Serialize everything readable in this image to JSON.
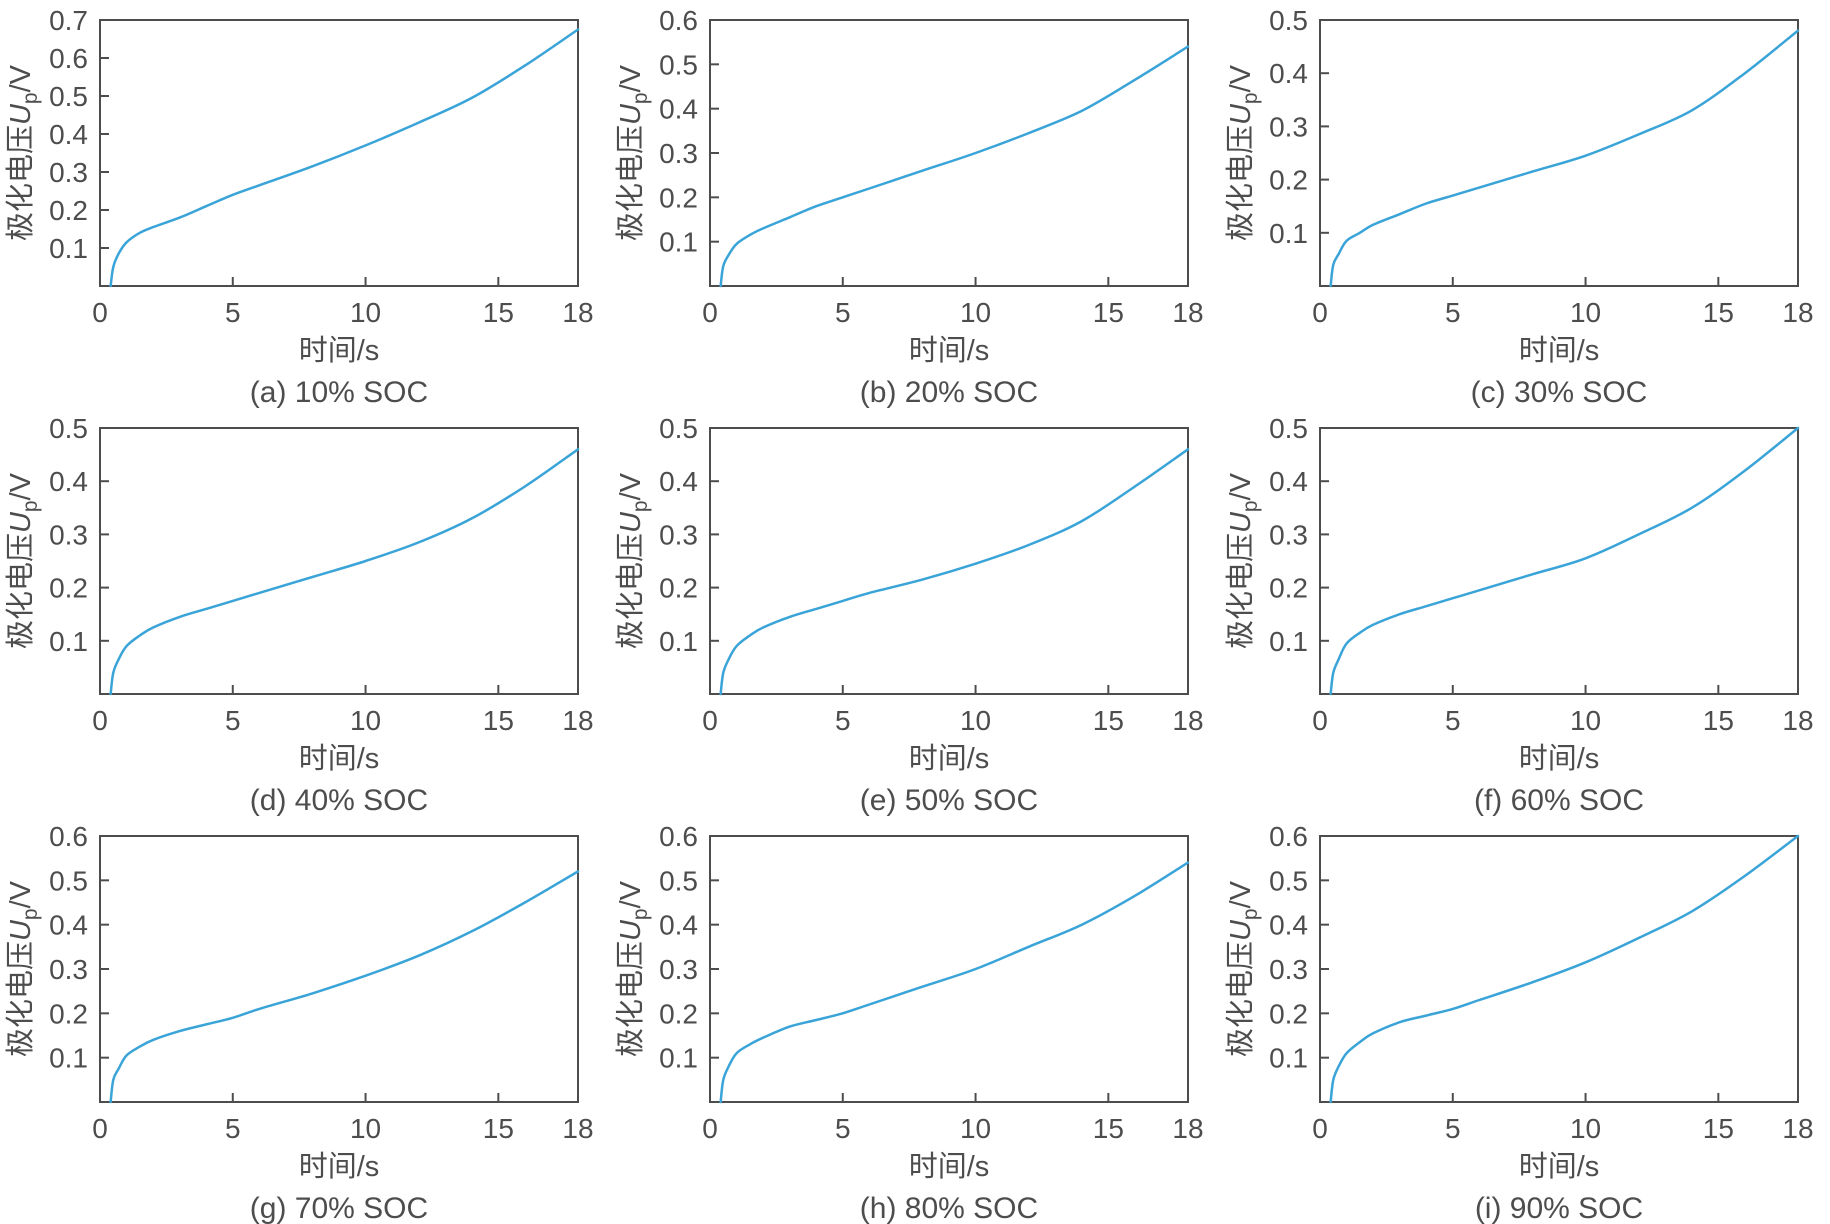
{
  "figure": {
    "x_axis_label": "时间/s",
    "y_axis_label": {
      "prefix": "极化电压",
      "symbol": "U",
      "subscript": "p",
      "suffix": "/V"
    },
    "line_color": "#3aa4d8",
    "axis_color": "#4d4d4d",
    "text_color": "#4d4d4d",
    "background_color": "#ffffff"
  },
  "chart_data": [
    {
      "type": "line",
      "caption": "(a) 10% SOC",
      "title": "",
      "xlabel": "时间/s",
      "ylabel": "极化电压Up/V",
      "xlim": [
        0,
        18
      ],
      "ylim": [
        0,
        0.7
      ],
      "xticks": [
        0,
        5,
        10,
        15,
        18
      ],
      "yticks": [
        0.1,
        0.2,
        0.3,
        0.4,
        0.5,
        0.6,
        0.7
      ],
      "grid": false,
      "legend": null,
      "x": [
        0.4,
        0.5,
        0.7,
        1,
        1.5,
        2,
        3,
        4,
        5,
        6,
        8,
        10,
        12,
        14,
        16,
        18
      ],
      "y": [
        0,
        0.05,
        0.085,
        0.115,
        0.14,
        0.155,
        0.18,
        0.21,
        0.24,
        0.265,
        0.315,
        0.37,
        0.43,
        0.495,
        0.58,
        0.675
      ]
    },
    {
      "type": "line",
      "caption": "(b) 20% SOC",
      "title": "",
      "xlabel": "时间/s",
      "ylabel": "极化电压Up/V",
      "xlim": [
        0,
        18
      ],
      "ylim": [
        0,
        0.6
      ],
      "xticks": [
        0,
        5,
        10,
        15,
        18
      ],
      "yticks": [
        0.1,
        0.2,
        0.3,
        0.4,
        0.5,
        0.6
      ],
      "grid": false,
      "legend": null,
      "x": [
        0.4,
        0.5,
        0.7,
        1,
        1.5,
        2,
        3,
        4,
        5,
        6,
        8,
        10,
        12,
        14,
        16,
        18
      ],
      "y": [
        0,
        0.045,
        0.07,
        0.095,
        0.115,
        0.13,
        0.155,
        0.18,
        0.2,
        0.22,
        0.26,
        0.3,
        0.345,
        0.395,
        0.465,
        0.54
      ]
    },
    {
      "type": "line",
      "caption": "(c) 30% SOC",
      "title": "",
      "xlabel": "时间/s",
      "ylabel": "极化电压Up/V",
      "xlim": [
        0,
        18
      ],
      "ylim": [
        0,
        0.5
      ],
      "xticks": [
        0,
        5,
        10,
        15,
        18
      ],
      "yticks": [
        0.1,
        0.2,
        0.3,
        0.4,
        0.5
      ],
      "grid": false,
      "legend": null,
      "x": [
        0.4,
        0.5,
        0.7,
        1,
        1.5,
        2,
        3,
        4,
        5,
        6,
        8,
        10,
        12,
        14,
        16,
        18
      ],
      "y": [
        0,
        0.04,
        0.06,
        0.085,
        0.1,
        0.115,
        0.135,
        0.155,
        0.17,
        0.185,
        0.215,
        0.245,
        0.285,
        0.33,
        0.4,
        0.48
      ]
    },
    {
      "type": "line",
      "caption": "(d) 40% SOC",
      "title": "",
      "xlabel": "时间/s",
      "ylabel": "极化电压Up/V",
      "xlim": [
        0,
        18
      ],
      "ylim": [
        0,
        0.5
      ],
      "xticks": [
        0,
        5,
        10,
        15,
        18
      ],
      "yticks": [
        0.1,
        0.2,
        0.3,
        0.4,
        0.5
      ],
      "grid": false,
      "legend": null,
      "x": [
        0.4,
        0.5,
        0.7,
        1,
        1.5,
        2,
        3,
        4,
        5,
        6,
        8,
        10,
        12,
        14,
        16,
        18
      ],
      "y": [
        0,
        0.04,
        0.065,
        0.09,
        0.11,
        0.125,
        0.145,
        0.16,
        0.175,
        0.19,
        0.22,
        0.25,
        0.285,
        0.33,
        0.39,
        0.46
      ]
    },
    {
      "type": "line",
      "caption": "(e) 50% SOC",
      "title": "",
      "xlabel": "时间/s",
      "ylabel": "极化电压Up/V",
      "xlim": [
        0,
        18
      ],
      "ylim": [
        0,
        0.5
      ],
      "xticks": [
        0,
        5,
        10,
        15,
        18
      ],
      "yticks": [
        0.1,
        0.2,
        0.3,
        0.4,
        0.5
      ],
      "grid": false,
      "legend": null,
      "x": [
        0.4,
        0.5,
        0.7,
        1,
        1.5,
        2,
        3,
        4,
        5,
        6,
        8,
        10,
        12,
        14,
        16,
        18
      ],
      "y": [
        0,
        0.04,
        0.065,
        0.09,
        0.11,
        0.125,
        0.145,
        0.16,
        0.175,
        0.19,
        0.215,
        0.245,
        0.28,
        0.325,
        0.39,
        0.46
      ]
    },
    {
      "type": "line",
      "caption": "(f) 60% SOC",
      "title": "",
      "xlabel": "时间/s",
      "ylabel": "极化电压Up/V",
      "xlim": [
        0,
        18
      ],
      "ylim": [
        0,
        0.5
      ],
      "xticks": [
        0,
        5,
        10,
        15,
        18
      ],
      "yticks": [
        0.1,
        0.2,
        0.3,
        0.4,
        0.5
      ],
      "grid": false,
      "legend": null,
      "x": [
        0.4,
        0.5,
        0.7,
        1,
        1.5,
        2,
        3,
        4,
        5,
        6,
        8,
        10,
        12,
        14,
        16,
        18
      ],
      "y": [
        0,
        0.04,
        0.065,
        0.095,
        0.115,
        0.13,
        0.15,
        0.165,
        0.18,
        0.195,
        0.225,
        0.255,
        0.3,
        0.35,
        0.42,
        0.5
      ]
    },
    {
      "type": "line",
      "caption": "(g) 70% SOC",
      "title": "",
      "xlabel": "时间/s",
      "ylabel": "极化电压Up/V",
      "xlim": [
        0,
        18
      ],
      "ylim": [
        0,
        0.6
      ],
      "xticks": [
        0,
        5,
        10,
        15,
        18
      ],
      "yticks": [
        0.1,
        0.2,
        0.3,
        0.4,
        0.5,
        0.6
      ],
      "grid": false,
      "legend": null,
      "x": [
        0.4,
        0.5,
        0.7,
        1,
        1.5,
        2,
        3,
        4,
        5,
        6,
        8,
        10,
        12,
        14,
        16,
        18
      ],
      "y": [
        0,
        0.05,
        0.075,
        0.105,
        0.125,
        0.14,
        0.16,
        0.175,
        0.19,
        0.21,
        0.245,
        0.285,
        0.33,
        0.385,
        0.45,
        0.52
      ]
    },
    {
      "type": "line",
      "caption": "(h) 80% SOC",
      "title": "",
      "xlabel": "时间/s",
      "ylabel": "极化电压Up/V",
      "xlim": [
        0,
        18
      ],
      "ylim": [
        0,
        0.6
      ],
      "xticks": [
        0,
        5,
        10,
        15,
        18
      ],
      "yticks": [
        0.1,
        0.2,
        0.3,
        0.4,
        0.5,
        0.6
      ],
      "grid": false,
      "legend": null,
      "x": [
        0.4,
        0.5,
        0.7,
        1,
        1.5,
        2,
        3,
        4,
        5,
        6,
        8,
        10,
        12,
        14,
        16,
        18
      ],
      "y": [
        0,
        0.05,
        0.08,
        0.11,
        0.13,
        0.145,
        0.17,
        0.185,
        0.2,
        0.22,
        0.26,
        0.3,
        0.35,
        0.4,
        0.465,
        0.54
      ]
    },
    {
      "type": "line",
      "caption": "(i) 90% SOC",
      "title": "",
      "xlabel": "时间/s",
      "ylabel": "极化电压Up/V",
      "xlim": [
        0,
        18
      ],
      "ylim": [
        0,
        0.6
      ],
      "xticks": [
        0,
        5,
        10,
        15,
        18
      ],
      "yticks": [
        0.1,
        0.2,
        0.3,
        0.4,
        0.5,
        0.6
      ],
      "grid": false,
      "legend": null,
      "x": [
        0.4,
        0.5,
        0.7,
        1,
        1.5,
        2,
        3,
        4,
        5,
        6,
        8,
        10,
        12,
        14,
        16,
        18
      ],
      "y": [
        0,
        0.05,
        0.08,
        0.11,
        0.135,
        0.155,
        0.18,
        0.195,
        0.21,
        0.23,
        0.27,
        0.315,
        0.37,
        0.43,
        0.51,
        0.6
      ]
    }
  ]
}
